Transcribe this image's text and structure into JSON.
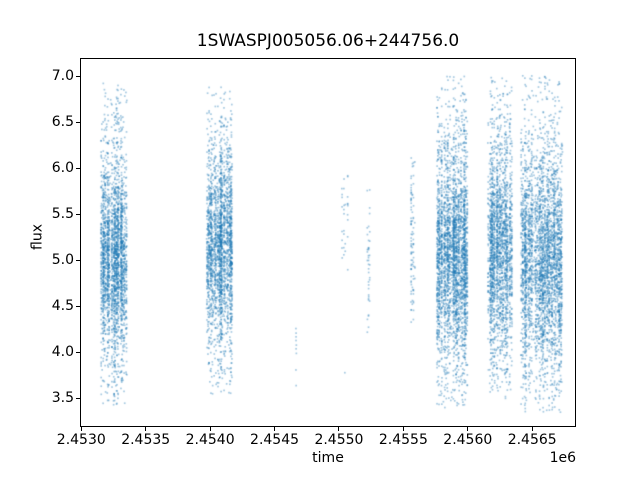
{
  "chart_data": {
    "type": "scatter",
    "title": "1SWASPJ005056.06+244756.0",
    "xlabel": "time",
    "ylabel": "flux",
    "x_offset_label": "1e6",
    "x_view": [
      2452990,
      2456840
    ],
    "y_view": [
      3.19,
      7.2
    ],
    "grid": false,
    "legend": null,
    "x_ticks": [
      {
        "value": 2453000,
        "label": "2.4530"
      },
      {
        "value": 2453500,
        "label": "2.4535"
      },
      {
        "value": 2454000,
        "label": "2.4540"
      },
      {
        "value": 2454500,
        "label": "2.4545"
      },
      {
        "value": 2455000,
        "label": "2.4550"
      },
      {
        "value": 2455500,
        "label": "2.4555"
      },
      {
        "value": 2456000,
        "label": "2.4560"
      },
      {
        "value": 2456500,
        "label": "2.4565"
      }
    ],
    "y_ticks": [
      {
        "value": 7.0,
        "label": "7.0"
      },
      {
        "value": 6.5,
        "label": "6.5"
      },
      {
        "value": 6.0,
        "label": "6.0"
      },
      {
        "value": 5.5,
        "label": "5.5"
      },
      {
        "value": 5.0,
        "label": "5.0"
      },
      {
        "value": 4.5,
        "label": "4.5"
      },
      {
        "value": 4.0,
        "label": "4.0"
      },
      {
        "value": 3.5,
        "label": "3.5"
      }
    ],
    "marker": {
      "color": "#1f77b4",
      "alpha": 0.4,
      "size": 1.7
    },
    "seed": 20453,
    "clusters": [
      {
        "t_start": 2453153,
        "t_end": 2453355,
        "n": 2500,
        "flux_center": 5.05,
        "weights": [
          0.55,
          0.33,
          0.12
        ],
        "sigmas": [
          0.42,
          0.82,
          1.15
        ],
        "flux_min": 3.43,
        "flux_max": 6.95,
        "nights": 80,
        "night_sigma": 0.12,
        "night_pow": 2.0
      },
      {
        "t_start": 2453968,
        "t_end": 2454174,
        "n": 2300,
        "flux_center": 5.15,
        "weights": [
          0.55,
          0.33,
          0.12
        ],
        "sigmas": [
          0.42,
          0.82,
          1.1
        ],
        "flux_min": 3.55,
        "flux_max": 6.9,
        "nights": 72,
        "night_sigma": 0.13,
        "night_pow": 2.2
      },
      {
        "t_start": 2455020,
        "t_end": 2455074,
        "n": 30,
        "flux_center": 5.4,
        "weights": [
          0.7,
          0.25,
          0.05
        ],
        "sigmas": [
          0.28,
          0.45,
          0.6
        ],
        "flux_min": 4.8,
        "flux_max": 5.95,
        "nights": 4,
        "night_sigma": 0.18,
        "night_pow": 1.0
      },
      {
        "t_start": 2455214,
        "t_end": 2455245,
        "n": 40,
        "flux_center": 5.0,
        "weights": [
          0.7,
          0.25,
          0.05
        ],
        "sigmas": [
          0.38,
          0.6,
          0.8
        ],
        "flux_min": 4.18,
        "flux_max": 5.85,
        "nights": 3,
        "night_sigma": 0.15,
        "night_pow": 1.0
      },
      {
        "t_start": 2455555,
        "t_end": 2455594,
        "n": 95,
        "flux_center": 5.2,
        "weights": [
          0.65,
          0.27,
          0.08
        ],
        "sigmas": [
          0.5,
          0.75,
          0.95
        ],
        "flux_min": 4.3,
        "flux_max": 6.3,
        "nights": 4,
        "night_sigma": 0.14,
        "night_pow": 1.2
      },
      {
        "t_start": 2455761,
        "t_end": 2455998,
        "n": 3000,
        "flux_center": 5.05,
        "weights": [
          0.53,
          0.33,
          0.14
        ],
        "sigmas": [
          0.46,
          0.88,
          1.32
        ],
        "flux_min": 3.4,
        "flux_max": 7.0,
        "nights": 90,
        "night_sigma": 0.12,
        "night_pow": 2.0
      },
      {
        "t_start": 2456153,
        "t_end": 2456347,
        "n": 2100,
        "flux_center": 5.15,
        "weights": [
          0.53,
          0.33,
          0.14
        ],
        "sigmas": [
          0.46,
          0.88,
          1.28
        ],
        "flux_min": 3.5,
        "flux_max": 7.0,
        "nights": 70,
        "night_sigma": 0.12,
        "night_pow": 2.0
      },
      {
        "t_start": 2456413,
        "t_end": 2456735,
        "n": 3300,
        "flux_center": 5.05,
        "weights": [
          0.53,
          0.33,
          0.14
        ],
        "sigmas": [
          0.48,
          0.9,
          1.35
        ],
        "flux_min": 3.35,
        "flux_max": 7.02,
        "nights": 110,
        "night_sigma": 0.13,
        "night_pow": 2.0
      }
    ],
    "explicit_points": [
      {
        "t": 2454667,
        "flux": [
          4.26,
          4.21,
          4.17,
          4.13,
          4.08,
          4.04,
          3.99,
          3.81,
          3.64
        ]
      },
      {
        "t": 2455047,
        "flux": [
          3.78
        ]
      }
    ]
  }
}
